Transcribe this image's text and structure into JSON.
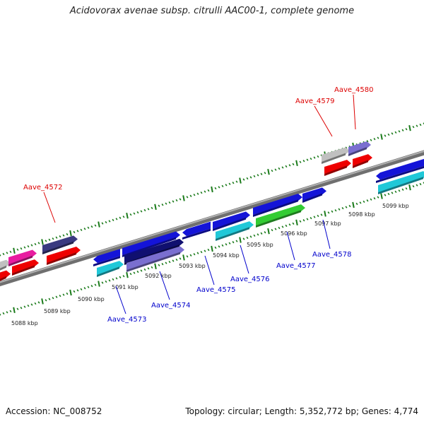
{
  "title": "Acidovorax avenae subsp. citrulli AAC00-1, complete genome",
  "footer": {
    "accession": "Accession: NC_008752",
    "summary": "Topology: circular; Length: 5,352,772 bp; Genes: 4,774"
  },
  "scale_labels": [
    "5088 kbp",
    "5089 kbp",
    "5090 kbp",
    "5091 kbp",
    "5092 kbp",
    "5093 kbp",
    "5094 kbp",
    "5095 kbp",
    "5096 kbp",
    "5097 kbp",
    "5098 kbp",
    "5099 kbp"
  ],
  "genes_top": [
    {
      "label": "Aave_4572",
      "color": "#dd0000"
    },
    {
      "label": "Aave_4579",
      "color": "#dd0000"
    },
    {
      "label": "Aave_4580",
      "color": "#dd0000"
    }
  ],
  "genes_bottom": [
    {
      "label": "Aave_4573",
      "color": "#0000cc"
    },
    {
      "label": "Aave_4574",
      "color": "#0000cc"
    },
    {
      "label": "Aave_4575",
      "color": "#0000cc"
    },
    {
      "label": "Aave_4576",
      "color": "#0000cc"
    },
    {
      "label": "Aave_4577",
      "color": "#0000cc"
    },
    {
      "label": "Aave_4578",
      "color": "#0000cc"
    }
  ],
  "colors": {
    "backbone": "#8a8a8a",
    "tick": "#1a7a1a",
    "red": "#ee0000",
    "blue": "#1414d8",
    "cyan": "#20c8d8",
    "lavender": "#7a6fd0",
    "navy": "#3a3a80",
    "darknavy": "#101070",
    "green": "#33cc33",
    "gray": "#c0c0c0",
    "pink": "#e81ca0"
  }
}
